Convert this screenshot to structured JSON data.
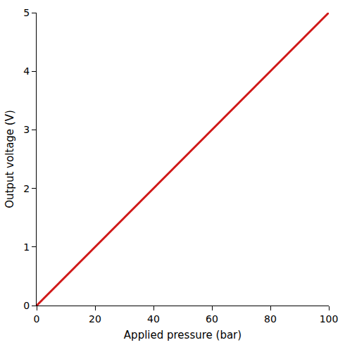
{
  "chart_data": {
    "type": "line",
    "x_label": "Applied pressure (bar)",
    "y_label": "Output voltage (V)",
    "x": [
      0,
      20,
      40,
      60,
      80,
      100
    ],
    "values": [
      0,
      1,
      2,
      3,
      4,
      5
    ],
    "color": "#d01818",
    "xlim": [
      0,
      100
    ],
    "xticks": [
      0,
      20,
      40,
      60,
      80,
      100
    ],
    "ylim": [
      0,
      5
    ],
    "yticks": [
      0,
      1,
      2,
      3,
      4,
      5
    ],
    "grid": false
  }
}
